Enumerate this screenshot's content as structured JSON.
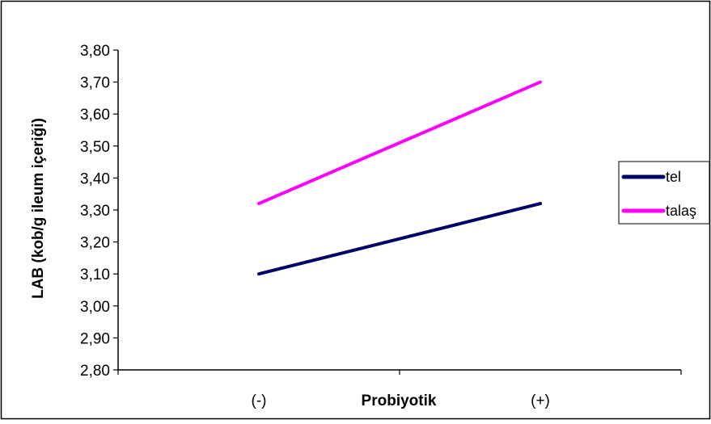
{
  "chart_data": {
    "type": "line",
    "categories": [
      "(-)",
      "(+)"
    ],
    "series": [
      {
        "name": "tel",
        "values": [
          3.1,
          3.32
        ],
        "color": "#000066"
      },
      {
        "name": "talaş",
        "values": [
          3.32,
          3.7
        ],
        "color": "#ff00ff"
      }
    ],
    "xlabel": "Probiyotik",
    "ylabel": "LAB (kob/g ileum içeriği)",
    "ylim": [
      2.8,
      3.8
    ],
    "yticks": [
      "2,80",
      "2,90",
      "3,00",
      "3,10",
      "3,20",
      "3,30",
      "3,40",
      "3,50",
      "3,60",
      "3,70",
      "3,80"
    ],
    "grid": false,
    "legend_position": "right"
  }
}
